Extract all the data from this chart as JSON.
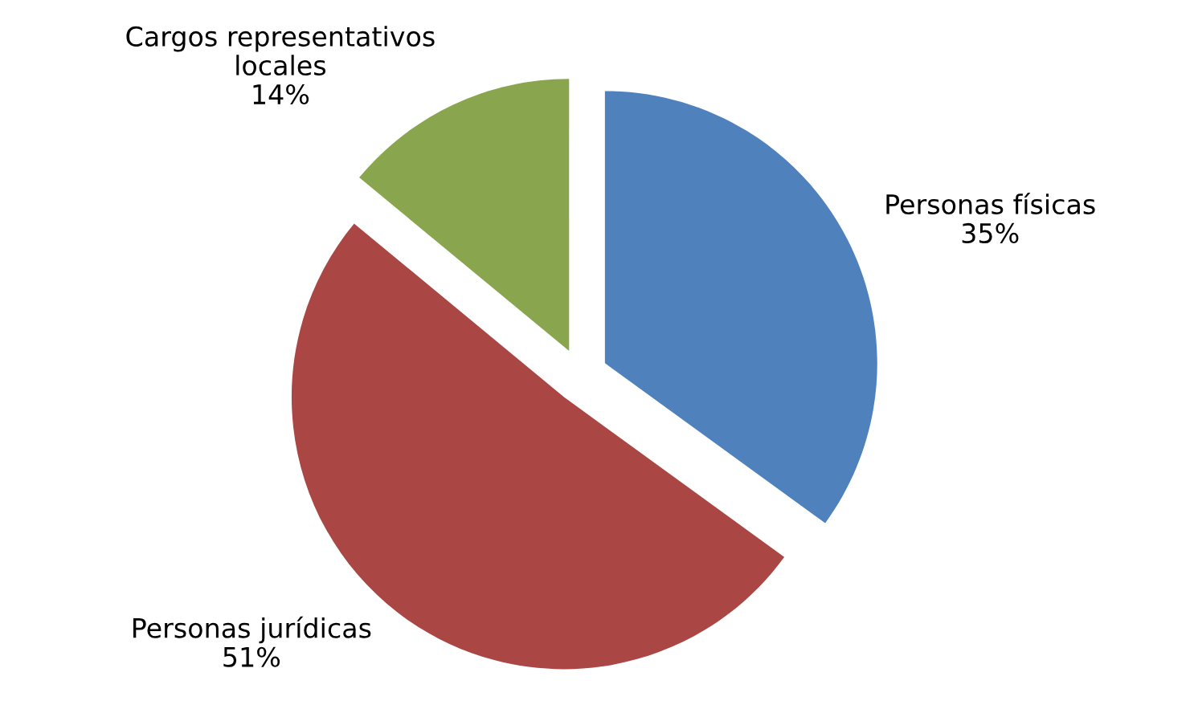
{
  "chart_data": {
    "type": "pie",
    "categories": [
      "Personas físicas",
      "Personas jurídicas",
      "Cargos representativos\nlocales"
    ],
    "values": [
      35,
      51,
      14
    ],
    "colors": [
      "#4f81bd",
      "#aa4643",
      "#89a54e"
    ],
    "value_labels": [
      "35%",
      "51%",
      "14%"
    ]
  }
}
